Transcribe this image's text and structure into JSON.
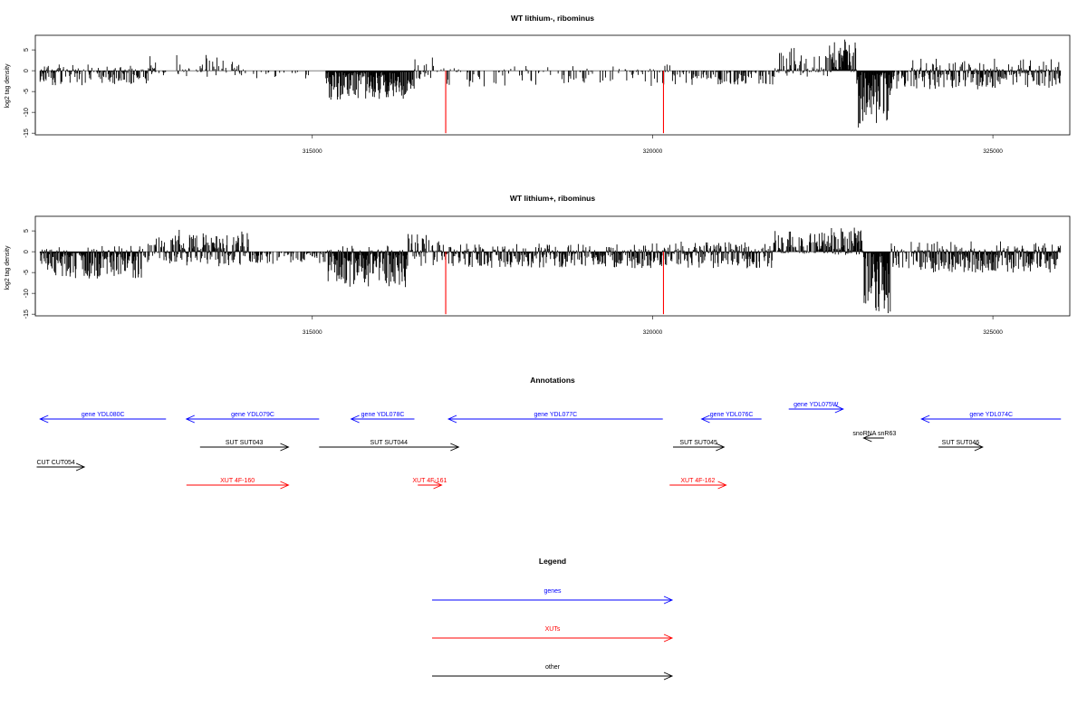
{
  "chart_data": [
    {
      "type": "bar",
      "title": "WT lithium-, ribominus",
      "ylabel": "log2 tag density",
      "xlabel": "",
      "xlim": [
        310930,
        326130
      ],
      "ylim": [
        -15.4,
        8.5
      ],
      "yticks": [
        -15,
        -10,
        -5,
        0,
        5
      ],
      "xticks": [
        315000,
        320000,
        325000
      ],
      "grid": false,
      "highlight_color": "#ff0000",
      "bar_color": "#000000",
      "red_spikes": [
        {
          "x": 316960,
          "y": -15
        },
        {
          "x": 320160,
          "y": -15
        }
      ],
      "profile": [
        {
          "start": 311000,
          "end": 312600,
          "min": -3.5,
          "max": 1.5,
          "density": 0.7
        },
        {
          "start": 312600,
          "end": 312700,
          "min": -1,
          "max": 3.5,
          "density": 0.8
        },
        {
          "start": 312700,
          "end": 313000,
          "min": -1.5,
          "max": 0.5,
          "density": 0.2
        },
        {
          "start": 313000,
          "end": 314000,
          "min": -1.5,
          "max": 4.2,
          "density": 0.35
        },
        {
          "start": 314000,
          "end": 315200,
          "min": -2,
          "max": 0.5,
          "density": 0.12
        },
        {
          "start": 315200,
          "end": 316500,
          "min": -7.0,
          "max": 1.0,
          "density": 1.0
        },
        {
          "start": 316500,
          "end": 316900,
          "min": -2.5,
          "max": 3.2,
          "density": 0.3
        },
        {
          "start": 316900,
          "end": 320300,
          "min": -4.0,
          "max": 1.5,
          "density": 0.25
        },
        {
          "start": 320300,
          "end": 321800,
          "min": -3.5,
          "max": 1.0,
          "density": 0.45
        },
        {
          "start": 321800,
          "end": 322600,
          "min": -1.5,
          "max": 5.5,
          "density": 0.6
        },
        {
          "start": 322600,
          "end": 323000,
          "min": -0.5,
          "max": 7.5,
          "density": 1.0
        },
        {
          "start": 323000,
          "end": 323500,
          "min": -14.0,
          "max": 1.0,
          "density": 1.0
        },
        {
          "start": 323500,
          "end": 323800,
          "min": -5.0,
          "max": 0.5,
          "density": 0.6
        },
        {
          "start": 323800,
          "end": 326000,
          "min": -4.5,
          "max": 3.0,
          "density": 0.85
        }
      ]
    },
    {
      "type": "bar",
      "title": "WT lithium+, ribominus",
      "ylabel": "log2 tag density",
      "xlabel": "",
      "xlim": [
        310930,
        326130
      ],
      "ylim": [
        -15.4,
        8.5
      ],
      "yticks": [
        -15,
        -10,
        -5,
        0,
        5
      ],
      "xticks": [
        315000,
        320000,
        325000
      ],
      "grid": false,
      "highlight_color": "#ff0000",
      "bar_color": "#000000",
      "red_spikes": [
        {
          "x": 316960,
          "y": -15
        },
        {
          "x": 320160,
          "y": -15
        }
      ],
      "profile": [
        {
          "start": 311000,
          "end": 312500,
          "min": -6.5,
          "max": 1.5,
          "density": 1.0
        },
        {
          "start": 312500,
          "end": 312900,
          "min": -2.5,
          "max": 3.5,
          "density": 0.6
        },
        {
          "start": 312900,
          "end": 314100,
          "min": -3.5,
          "max": 5.5,
          "density": 1.0
        },
        {
          "start": 314100,
          "end": 315200,
          "min": -3.0,
          "max": 1.0,
          "density": 0.5
        },
        {
          "start": 315200,
          "end": 316400,
          "min": -8.5,
          "max": 1.5,
          "density": 1.0
        },
        {
          "start": 316400,
          "end": 316900,
          "min": -3.5,
          "max": 4.5,
          "density": 0.7
        },
        {
          "start": 316900,
          "end": 320300,
          "min": -4.0,
          "max": 2.0,
          "density": 0.9
        },
        {
          "start": 320300,
          "end": 321800,
          "min": -4.0,
          "max": 2.5,
          "density": 0.9
        },
        {
          "start": 321800,
          "end": 322500,
          "min": -0.5,
          "max": 5.0,
          "density": 0.8
        },
        {
          "start": 322500,
          "end": 323100,
          "min": -1.0,
          "max": 6.0,
          "density": 1.0
        },
        {
          "start": 323100,
          "end": 323500,
          "min": -15.0,
          "max": 1.0,
          "density": 1.0
        },
        {
          "start": 323500,
          "end": 323800,
          "min": -5.0,
          "max": 2.0,
          "density": 0.6
        },
        {
          "start": 323800,
          "end": 326000,
          "min": -5.0,
          "max": 2.5,
          "density": 1.0
        }
      ]
    }
  ],
  "annotations": {
    "title": "Annotations",
    "features": [
      {
        "label": "gene YDL080C",
        "start": 311000,
        "end": 312850,
        "direction": "reverse",
        "color": "#0000ff",
        "row": 0
      },
      {
        "label": "gene YDL079C",
        "start": 313150,
        "end": 315100,
        "direction": "reverse",
        "color": "#0000ff",
        "row": 0
      },
      {
        "label": "gene YDL078C",
        "start": 315570,
        "end": 316500,
        "direction": "reverse",
        "color": "#0000ff",
        "row": 0
      },
      {
        "label": "gene YDL077C",
        "start": 317000,
        "end": 320150,
        "direction": "reverse",
        "color": "#0000ff",
        "row": 0
      },
      {
        "label": "gene YDL076C",
        "start": 320720,
        "end": 321600,
        "direction": "reverse",
        "color": "#0000ff",
        "row": 0
      },
      {
        "label": "gene YDL075W",
        "start": 322000,
        "end": 322800,
        "direction": "forward",
        "color": "#0000ff",
        "row": -1
      },
      {
        "label": "gene YDL074C",
        "start": 323950,
        "end": 326000,
        "direction": "reverse",
        "color": "#0000ff",
        "row": 0
      },
      {
        "label": "snoRNA snR63",
        "start": 323100,
        "end": 323400,
        "direction": "reverse",
        "color": "#000000",
        "row": 0.6
      },
      {
        "label": "SUT SUT043",
        "start": 313350,
        "end": 314650,
        "direction": "forward",
        "color": "#000000",
        "row": 1
      },
      {
        "label": "SUT SUT044",
        "start": 315100,
        "end": 317150,
        "direction": "forward",
        "color": "#000000",
        "row": 1
      },
      {
        "label": "SUT SUT045",
        "start": 320300,
        "end": 321050,
        "direction": "forward",
        "color": "#000000",
        "row": 1
      },
      {
        "label": "SUT SUT046",
        "start": 324200,
        "end": 324850,
        "direction": "forward",
        "color": "#000000",
        "row": 1
      },
      {
        "label": "CUT CUT054",
        "start": 310950,
        "end": 311650,
        "direction": "forward",
        "color": "#000000",
        "row": 1.7
      },
      {
        "label": "XUT 4F-160",
        "start": 313150,
        "end": 314650,
        "direction": "forward",
        "color": "#ff0000",
        "row": 2.7
      },
      {
        "label": "XUT 4F-161",
        "start": 316550,
        "end": 316900,
        "direction": "forward",
        "color": "#ff0000",
        "row": 2.7
      },
      {
        "label": "XUT 4F-162",
        "start": 320250,
        "end": 321080,
        "direction": "forward",
        "color": "#ff0000",
        "row": 2.7
      }
    ]
  },
  "legend": {
    "title": "Legend",
    "items": [
      {
        "label": "genes",
        "color": "#0000ff"
      },
      {
        "label": "XUTs",
        "color": "#ff0000"
      },
      {
        "label": "other",
        "color": "#000000"
      }
    ]
  }
}
